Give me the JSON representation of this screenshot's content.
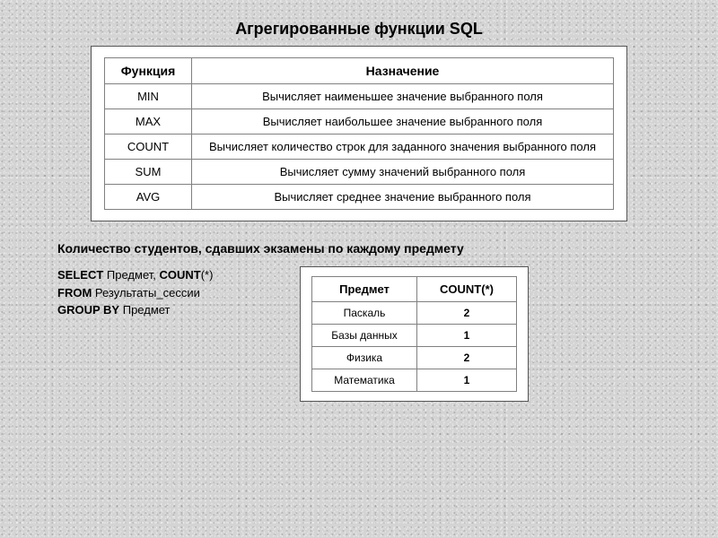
{
  "title": "Агрегированные функции SQL",
  "functionsTable": {
    "columns": [
      "Функция",
      "Назначение"
    ],
    "rows": [
      [
        "MIN",
        "Вычисляет наименьшее значение выбранного поля"
      ],
      [
        "MAX",
        "Вычисляет наибольшее значение выбранного поля"
      ],
      [
        "COUNT",
        "Вычисляет количество строк для заданного значения выбранного поля"
      ],
      [
        "SUM",
        "Вычисляет сумму значений выбранного поля"
      ],
      [
        "AVG",
        "Вычисляет среднее значение выбранного поля"
      ]
    ],
    "col_widths": [
      "80px",
      "auto"
    ],
    "border_color": "#808080",
    "background": "#ffffff",
    "font_size_header": 14,
    "font_size_body": 13
  },
  "subtitle": "Количество студентов, сдавших экзамены по каждому предмету",
  "query": {
    "select_kw": "SELECT",
    "select_rest": " Предмет, ",
    "count_kw": "COUNT",
    "count_rest": "(*)",
    "from_kw": "FROM",
    "from_rest": " Результаты_сессии",
    "group_kw": "GROUP BY",
    "group_rest": " Предмет"
  },
  "resultsTable": {
    "columns": [
      "Предмет",
      "COUNT(*)"
    ],
    "rows": [
      [
        "Паскаль",
        "2"
      ],
      [
        "Базы данных",
        "1"
      ],
      [
        "Физика",
        "2"
      ],
      [
        "Математика",
        "1"
      ]
    ],
    "border_color": "#808080",
    "background": "#ffffff",
    "font_size_header": 13,
    "font_size_body": 12
  },
  "colors": {
    "page_background": "#d4d4d4",
    "text": "#000000",
    "panel_border": "#555555"
  }
}
